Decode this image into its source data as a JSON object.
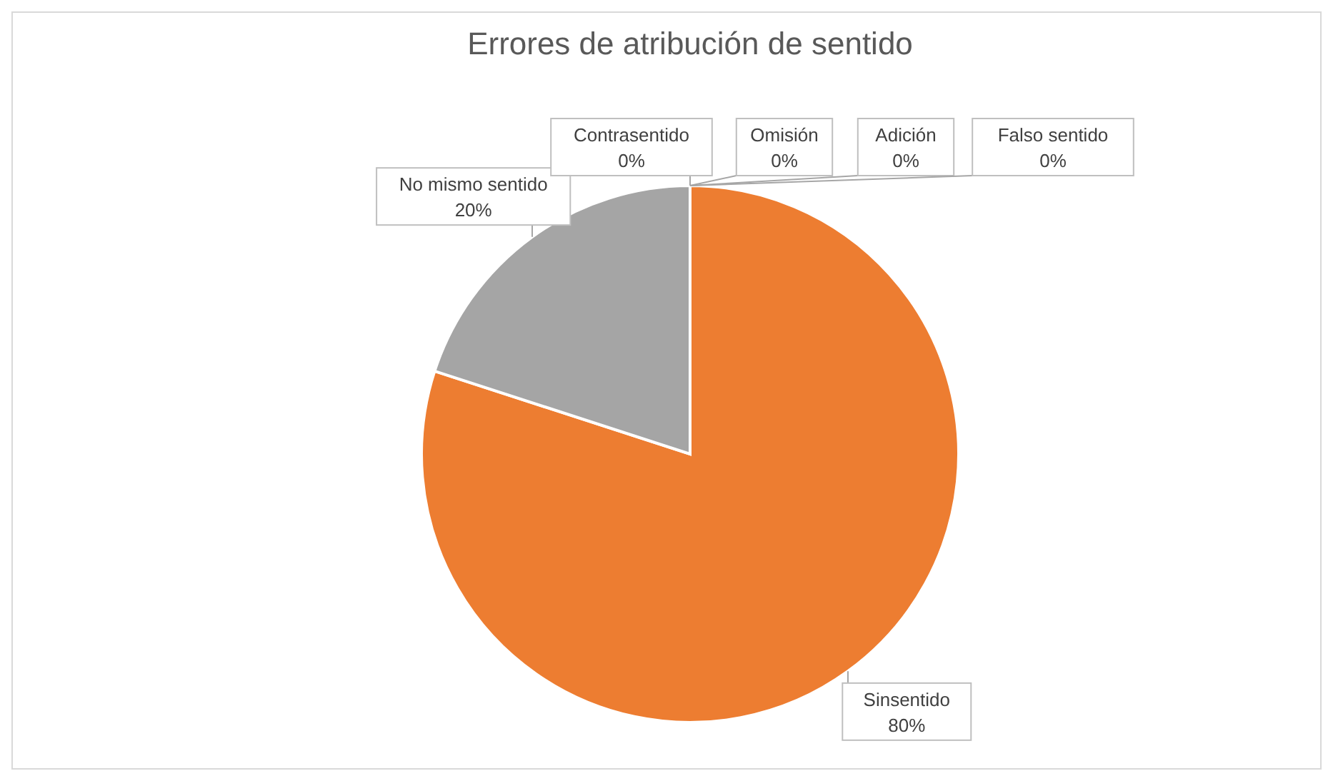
{
  "chart_data": {
    "type": "pie",
    "title": "Errores de atribución de sentido",
    "categories": [
      "Sinsentido",
      "No mismo sentido",
      "Contrasentido",
      "Omisión",
      "Adición",
      "Falso sentido"
    ],
    "values": [
      80,
      20,
      0,
      0,
      0,
      0
    ],
    "colors": [
      "#ed7d31",
      "#a5a5a5",
      "#ffc000",
      "#5b9bd5",
      "#70ad47",
      "#264478"
    ],
    "value_labels": [
      "80%",
      "20%",
      "0%",
      "0%",
      "0%",
      "0%"
    ]
  }
}
